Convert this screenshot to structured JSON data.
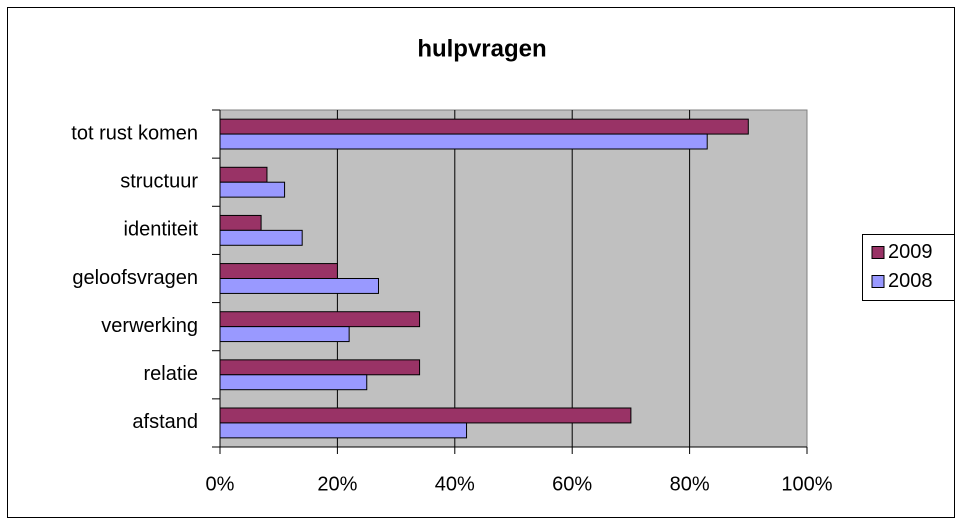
{
  "chart_data": {
    "type": "hbar",
    "title": "hulpvragen",
    "categories": [
      "tot rust komen",
      "structuur",
      "identiteit",
      "geloofsvragen",
      "verwerking",
      "relatie",
      "afstand"
    ],
    "series": [
      {
        "name": "2009",
        "color": "#993366",
        "values": [
          90,
          8,
          7,
          20,
          34,
          34,
          70
        ]
      },
      {
        "name": "2008",
        "color": "#9999ff",
        "values": [
          83,
          11,
          14,
          27,
          22,
          25,
          42
        ]
      }
    ],
    "xlim": [
      0,
      100
    ],
    "xticks": [
      {
        "value": 0,
        "label": "0%"
      },
      {
        "value": 20,
        "label": "20%"
      },
      {
        "value": 40,
        "label": "40%"
      },
      {
        "value": 60,
        "label": "60%"
      },
      {
        "value": 80,
        "label": "80%"
      },
      {
        "value": 100,
        "label": "100%"
      }
    ],
    "grid": true,
    "legend": "right"
  }
}
